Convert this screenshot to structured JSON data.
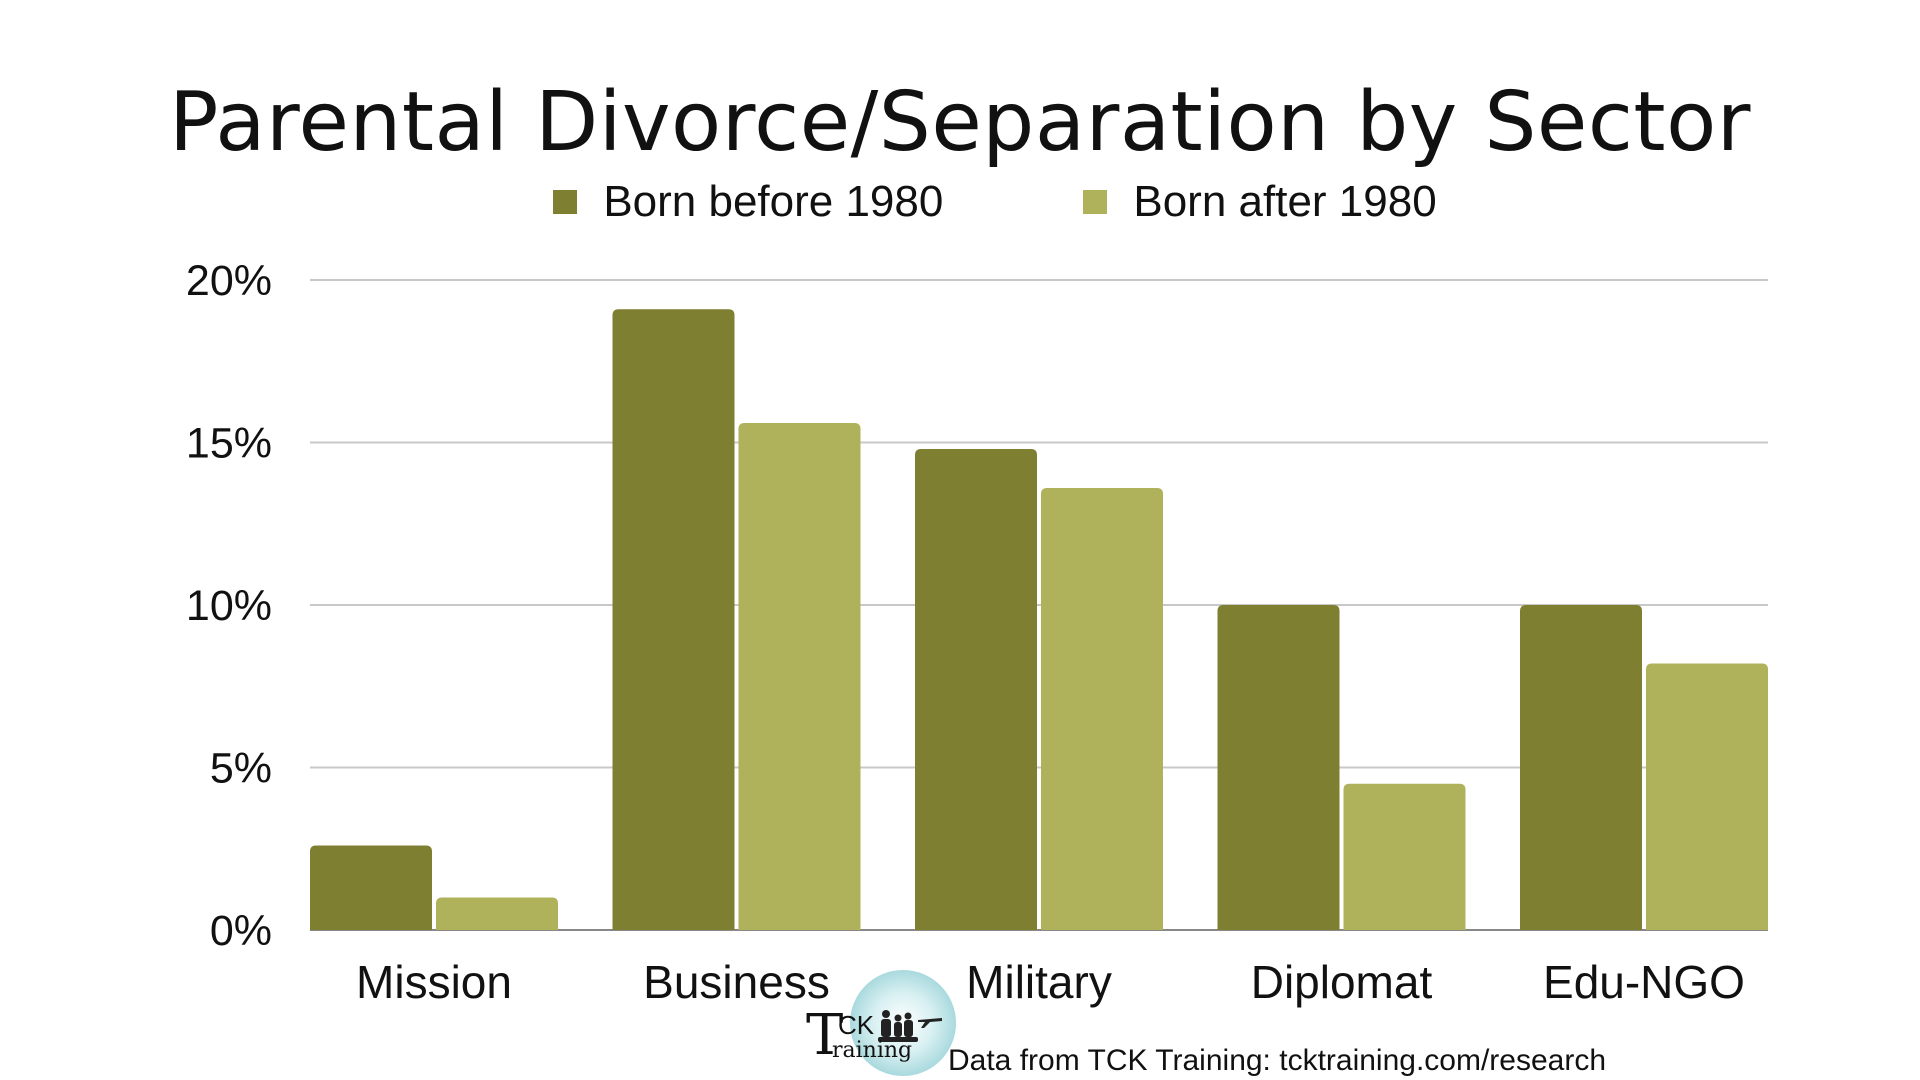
{
  "colors": {
    "series_before": "#7e7f31",
    "series_after": "#afb25a",
    "grid": "#c8c8c8",
    "axis": "#888888",
    "logo_accent": "#7cc4ca"
  },
  "chart_data": {
    "type": "bar",
    "title": "Parental Divorce/Separation by Sector",
    "xlabel": "",
    "ylabel": "",
    "categories": [
      "Mission",
      "Business",
      "Military",
      "Diplomat",
      "Edu-NGO"
    ],
    "series": [
      {
        "name": "Born before 1980",
        "values": [
          2.6,
          19.1,
          14.8,
          10.0,
          10.0
        ]
      },
      {
        "name": "Born after 1980",
        "values": [
          1.0,
          15.6,
          13.6,
          4.5,
          8.2
        ]
      }
    ],
    "ylim": [
      0,
      20
    ],
    "y_ticks": [
      {
        "value": 0,
        "label": "0%"
      },
      {
        "value": 5,
        "label": "5%"
      },
      {
        "value": 10,
        "label": "10%"
      },
      {
        "value": 15,
        "label": "15%"
      },
      {
        "value": 20,
        "label": "20%"
      }
    ],
    "grid": true,
    "legend_position": "top-center"
  },
  "footer": {
    "source_note": "Data from TCK Training: tcktraining.com/research"
  },
  "logo": {
    "letter": "T",
    "line1": "CK",
    "line2": "raining",
    "icon": "family-airplane-icon"
  }
}
